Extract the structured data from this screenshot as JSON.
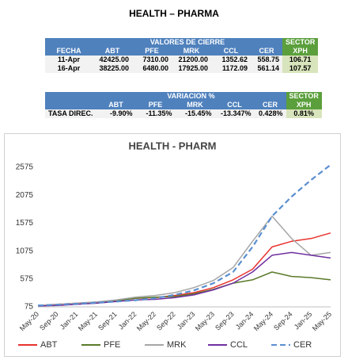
{
  "header": {
    "title": "HEALTH – PHARMA"
  },
  "table1": {
    "group": "VALORES DE CIERRE",
    "sector": "SECTOR",
    "columns": [
      "FECHA",
      "ABT",
      "PFE",
      "MRK",
      "CCL",
      "CER",
      "XPH"
    ],
    "rows": [
      [
        "11-Apr",
        "42425.00",
        "7310.00",
        "21200.00",
        "1352.62",
        "558.75",
        "106.71"
      ],
      [
        "16-Apr",
        "38225.00",
        "6480.00",
        "17925.00",
        "1172.09",
        "561.14",
        "107.57"
      ]
    ]
  },
  "table2": {
    "group": "VARIACION %",
    "sector": "SECTOR",
    "columns": [
      "ABT",
      "PFE",
      "MRK",
      "CCL",
      "CER",
      "XPH"
    ],
    "rows": [
      [
        "TASA DIREC.",
        "-9.90%",
        "-11.35%",
        "-15.45%",
        "-13.347%",
        "0.428%",
        "0.81%"
      ]
    ]
  },
  "chart_data": {
    "type": "line",
    "title": "HEALTH - PHARM",
    "categories": [
      "May-20",
      "Sep-20",
      "Jan-21",
      "May-21",
      "Sep-21",
      "Jan-22",
      "May-22",
      "Sep-22",
      "Jan-23",
      "May-23",
      "Sep-23",
      "Jan-24",
      "May-24",
      "Sep-24",
      "Jan-25",
      "May-25"
    ],
    "ylim": [
      75,
      2775
    ],
    "yticks": [
      75,
      575,
      1075,
      1575,
      2075,
      2575
    ],
    "grid": false,
    "legend": "bottom",
    "series": [
      {
        "name": "ABT",
        "color": "#e8322e",
        "values": [
          100,
          120,
          140,
          160,
          190,
          230,
          240,
          280,
          330,
          420,
          560,
          750,
          1150,
          1250,
          1300,
          1400
        ]
      },
      {
        "name": "PFE",
        "color": "#5a7a2a",
        "values": [
          100,
          115,
          130,
          150,
          190,
          230,
          250,
          260,
          310,
          390,
          500,
          560,
          700,
          620,
          600,
          560
        ]
      },
      {
        "name": "MRK",
        "color": "#a6a6a6",
        "values": [
          100,
          120,
          140,
          165,
          200,
          250,
          280,
          330,
          420,
          550,
          780,
          1250,
          1700,
          1300,
          1000,
          1050
        ]
      },
      {
        "name": "CCL",
        "color": "#7030a0",
        "values": [
          90,
          100,
          120,
          140,
          170,
          200,
          210,
          240,
          290,
          380,
          500,
          700,
          1000,
          1050,
          1000,
          950
        ]
      },
      {
        "name": "CER",
        "color": "#5b8fd0",
        "dashed": true,
        "values": [
          100,
          115,
          130,
          150,
          170,
          195,
          230,
          290,
          370,
          500,
          700,
          1150,
          1700,
          2050,
          2350,
          2620
        ]
      }
    ]
  }
}
